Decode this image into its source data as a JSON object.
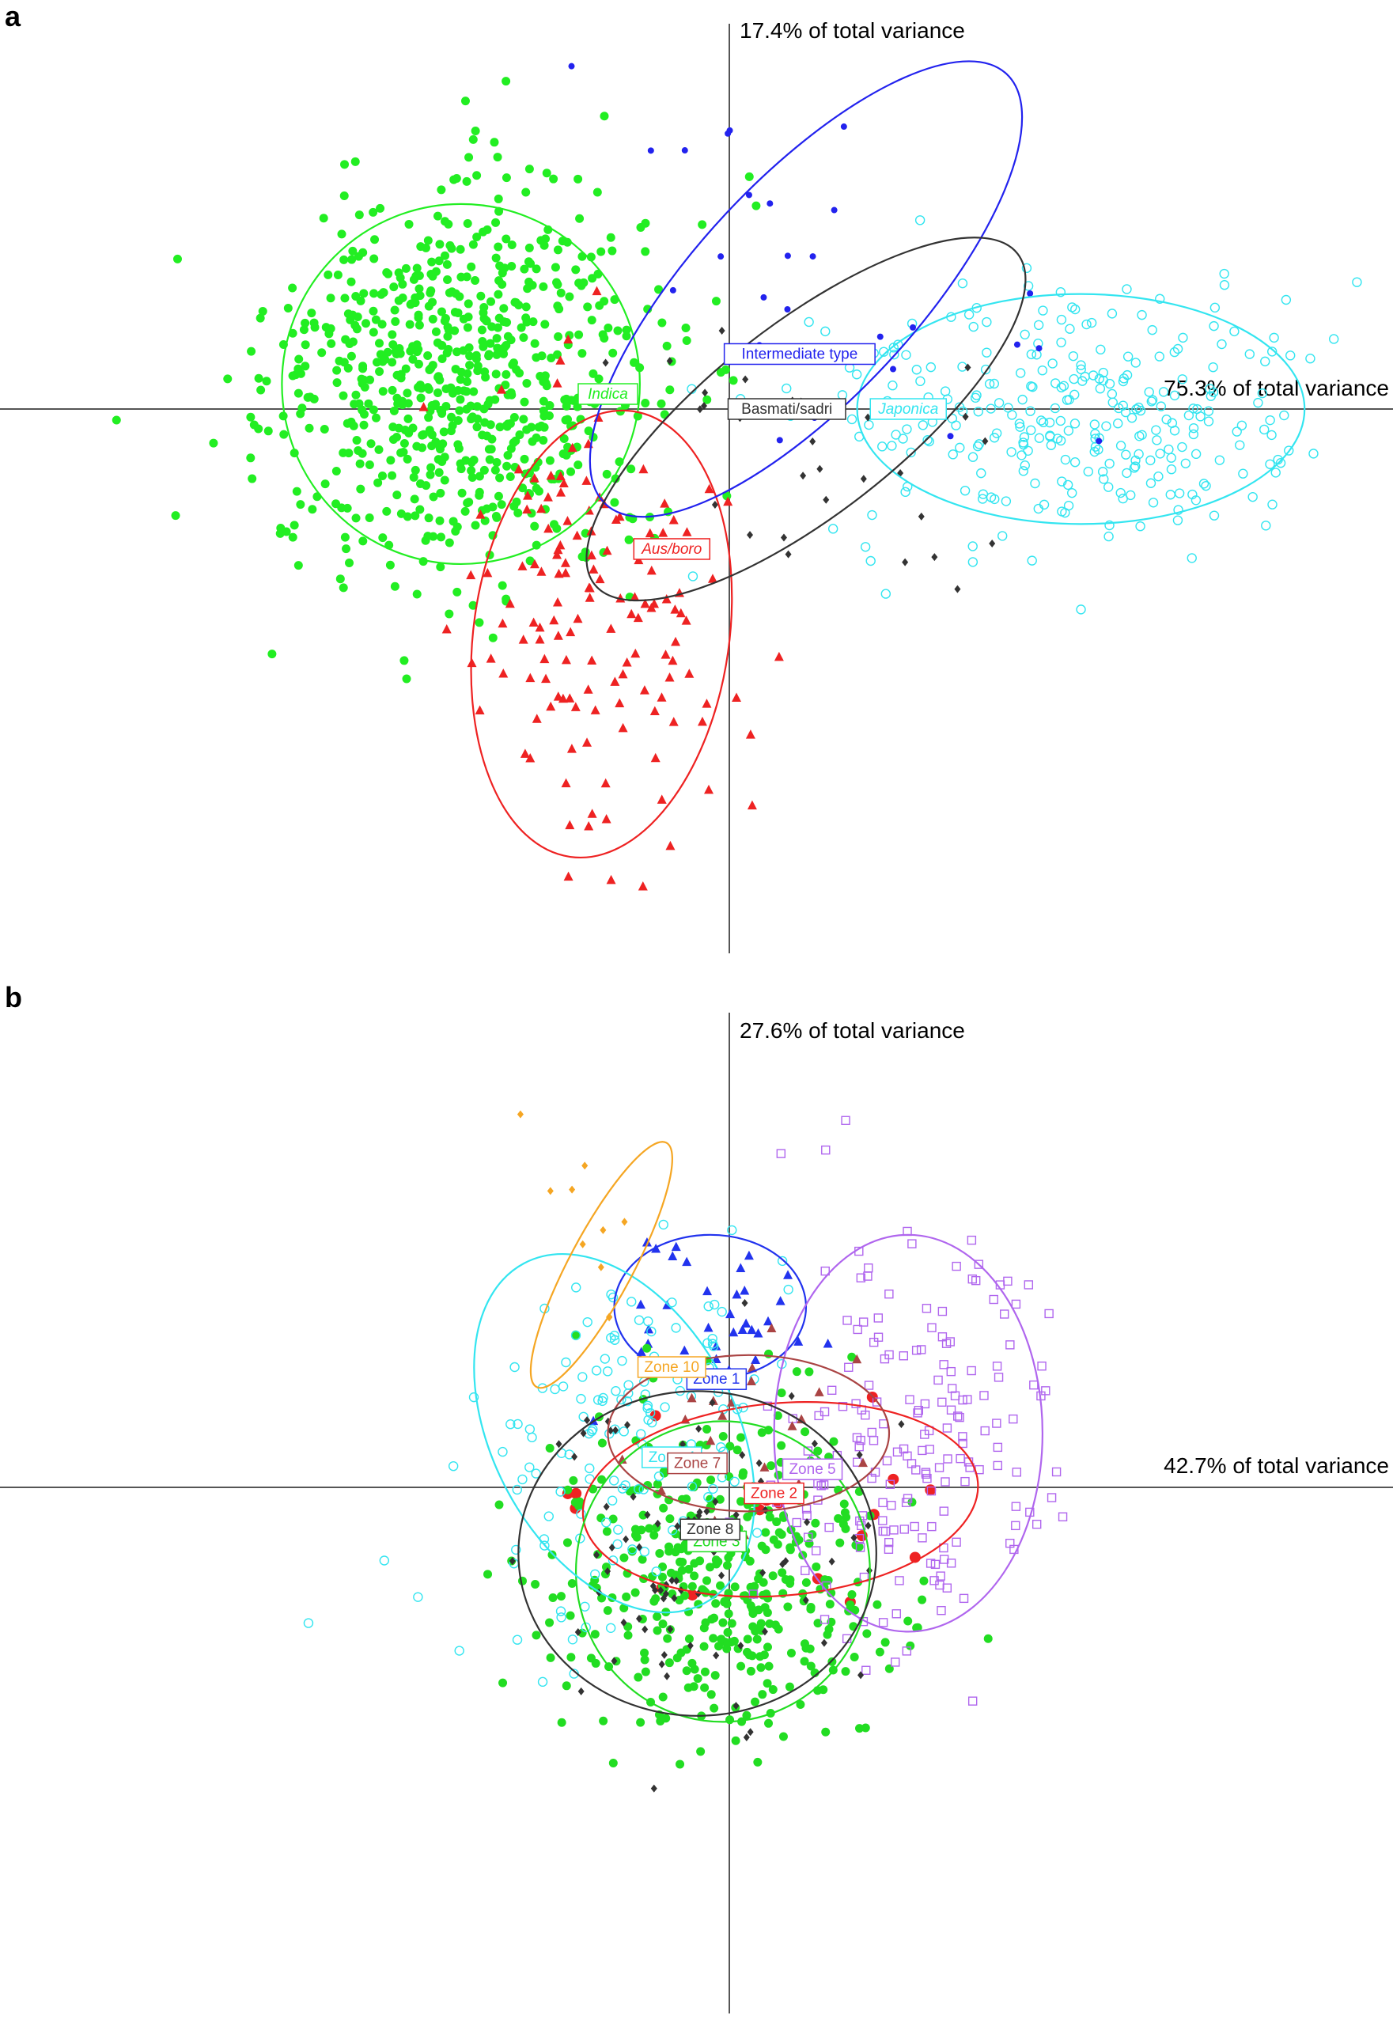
{
  "chart_data": [
    {
      "panel": "a",
      "type": "scatter",
      "x_axis_label": "75.3% of total variance",
      "y_axis_label": "17.4% of total variance",
      "xlim": [
        -1.0,
        1.0
      ],
      "ylim": [
        -1.0,
        1.0
      ],
      "grid": false,
      "groups": [
        {
          "name": "Indica",
          "italic": true,
          "color": "#22ee22",
          "marker": "circle-filled",
          "count": 720,
          "ellipse": {
            "cx": -0.42,
            "cy": 0.05,
            "rx": 0.28,
            "ry": 0.36,
            "angle": 0
          }
        },
        {
          "name": "Japonica",
          "italic": true,
          "color": "#33e5f0",
          "marker": "circle-open",
          "count": 300,
          "ellipse": {
            "cx": 0.55,
            "cy": 0.0,
            "rx": 0.35,
            "ry": 0.23,
            "angle": 0
          }
        },
        {
          "name": "Aus/boro",
          "italic": true,
          "color": "#ee2222",
          "marker": "triangle",
          "count": 140,
          "ellipse": {
            "cx": -0.2,
            "cy": -0.45,
            "rx": 0.2,
            "ry": 0.45,
            "angle": 8
          }
        },
        {
          "name": "Intermediate type",
          "italic": false,
          "color": "#2222ee",
          "marker": "dot-small",
          "count": 28,
          "ellipse": {
            "cx": 0.12,
            "cy": 0.24,
            "rx": 0.46,
            "ry": 0.22,
            "angle": -47
          }
        },
        {
          "name": "Basmati/sadri",
          "italic": false,
          "color": "#333333",
          "marker": "diamond",
          "count": 30,
          "ellipse": {
            "cx": 0.12,
            "cy": -0.02,
            "rx": 0.42,
            "ry": 0.19,
            "angle": -38
          }
        }
      ]
    },
    {
      "panel": "b",
      "type": "scatter",
      "x_axis_label": "42.7% of total variance",
      "y_axis_label": "27.6% of total variance",
      "xlim": [
        -1.0,
        1.0
      ],
      "ylim": [
        -1.0,
        1.0
      ],
      "grid": false,
      "groups": [
        {
          "name": "Zone 1",
          "color": "#2233ee",
          "marker": "triangle",
          "count": 34,
          "ellipse": {
            "cx": -0.03,
            "cy": 0.3,
            "rx": 0.15,
            "ry": 0.12,
            "angle": 0
          }
        },
        {
          "name": "Zone 2",
          "color": "#ee2222",
          "marker": "circle-filled-large",
          "count": 20,
          "ellipse": {
            "cx": 0.08,
            "cy": -0.02,
            "rx": 0.31,
            "ry": 0.16,
            "angle": -5
          }
        },
        {
          "name": "Zone 3",
          "color": "#22dd22",
          "marker": "circle-filled",
          "count": 420,
          "ellipse": {
            "cx": -0.01,
            "cy": -0.14,
            "rx": 0.23,
            "ry": 0.25,
            "angle": 0
          }
        },
        {
          "name": "Zone 4",
          "color": "#33e5f0",
          "marker": "circle-open",
          "count": 140,
          "ellipse": {
            "cx": -0.18,
            "cy": 0.09,
            "rx": 0.19,
            "ry": 0.32,
            "angle": -28
          }
        },
        {
          "name": "Zone 5",
          "color": "#b066ee",
          "marker": "square-open",
          "count": 190,
          "ellipse": {
            "cx": 0.28,
            "cy": 0.09,
            "rx": 0.21,
            "ry": 0.33,
            "angle": 0
          }
        },
        {
          "name": "Zone 7",
          "color": "#aa4444",
          "marker": "triangle",
          "count": 22,
          "ellipse": {
            "cx": 0.03,
            "cy": 0.09,
            "rx": 0.22,
            "ry": 0.13,
            "angle": 0
          }
        },
        {
          "name": "Zone 8",
          "color": "#333333",
          "marker": "diamond",
          "count": 90,
          "ellipse": {
            "cx": -0.05,
            "cy": -0.11,
            "rx": 0.28,
            "ry": 0.27,
            "angle": 0
          }
        },
        {
          "name": "Zone 10",
          "color": "#f5a623",
          "marker": "diamond",
          "count": 10,
          "ellipse": {
            "cx": -0.2,
            "cy": 0.37,
            "rx": 0.05,
            "ry": 0.23,
            "angle": 28
          }
        }
      ]
    }
  ]
}
